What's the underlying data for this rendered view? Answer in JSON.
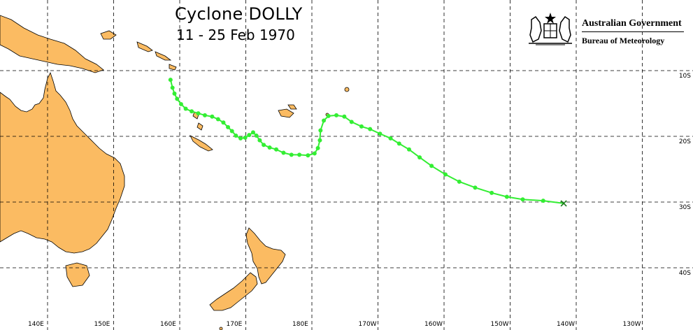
{
  "title": "Cyclone DOLLY",
  "subtitle": "11 - 25 Feb 1970",
  "organization": {
    "line1": "Australian Government",
    "line2": "Bureau of Meteorology"
  },
  "colors": {
    "land": "#fbbb62",
    "coast": "#000000",
    "track": "#33ee33",
    "grid": "#000000"
  },
  "grid": {
    "longitude_labels": [
      "140E",
      "150E",
      "160E",
      "170E",
      "180E",
      "170W",
      "160W",
      "150W",
      "140W",
      "130W"
    ],
    "latitude_labels": [
      "10S",
      "20S",
      "30S",
      "40S"
    ]
  },
  "track": {
    "points": [
      [
        160.3,
        -11.4
      ],
      [
        160.6,
        -12.6
      ],
      [
        160.9,
        -13.5
      ],
      [
        161.3,
        -14.3
      ],
      [
        161.9,
        -15.1
      ],
      [
        162.6,
        -15.8
      ],
      [
        163.5,
        -16.2
      ],
      [
        164.5,
        -16.5
      ],
      [
        165.5,
        -16.8
      ],
      [
        166.6,
        -17.0
      ],
      [
        167.5,
        -17.4
      ],
      [
        168.3,
        -17.9
      ],
      [
        169.0,
        -18.6
      ],
      [
        169.6,
        -19.2
      ],
      [
        170.2,
        -19.9
      ],
      [
        170.9,
        -20.3
      ],
      [
        171.6,
        -20.2
      ],
      [
        172.2,
        -19.8
      ],
      [
        172.8,
        -19.4
      ],
      [
        173.3,
        -19.9
      ],
      [
        173.8,
        -20.6
      ],
      [
        174.4,
        -21.3
      ],
      [
        175.3,
        -21.7
      ],
      [
        176.3,
        -22.0
      ],
      [
        177.4,
        -22.5
      ],
      [
        178.6,
        -22.8
      ],
      [
        179.8,
        -22.8
      ],
      [
        181.1,
        -22.9
      ],
      [
        182.1,
        -22.6
      ],
      [
        182.6,
        -21.8
      ],
      [
        182.9,
        -20.6
      ],
      [
        183.0,
        -19.1
      ],
      [
        183.5,
        -17.6
      ],
      [
        184.2,
        -16.9
      ],
      [
        185.4,
        -16.8
      ],
      [
        186.6,
        -17.0
      ],
      [
        187.7,
        -17.8
      ],
      [
        189.2,
        -18.5
      ],
      [
        190.5,
        -18.9
      ],
      [
        192.0,
        -19.6
      ],
      [
        193.6,
        -20.3
      ],
      [
        194.9,
        -21.1
      ],
      [
        196.4,
        -22.0
      ],
      [
        198.0,
        -23.2
      ],
      [
        199.8,
        -24.5
      ],
      [
        201.9,
        -25.8
      ],
      [
        204.0,
        -26.9
      ],
      [
        206.4,
        -27.8
      ],
      [
        208.9,
        -28.6
      ],
      [
        211.2,
        -29.2
      ],
      [
        213.6,
        -29.6
      ],
      [
        216.7,
        -29.8
      ]
    ],
    "end_marker": "x-mark",
    "end_position": [
      219.8,
      -30.2
    ]
  }
}
